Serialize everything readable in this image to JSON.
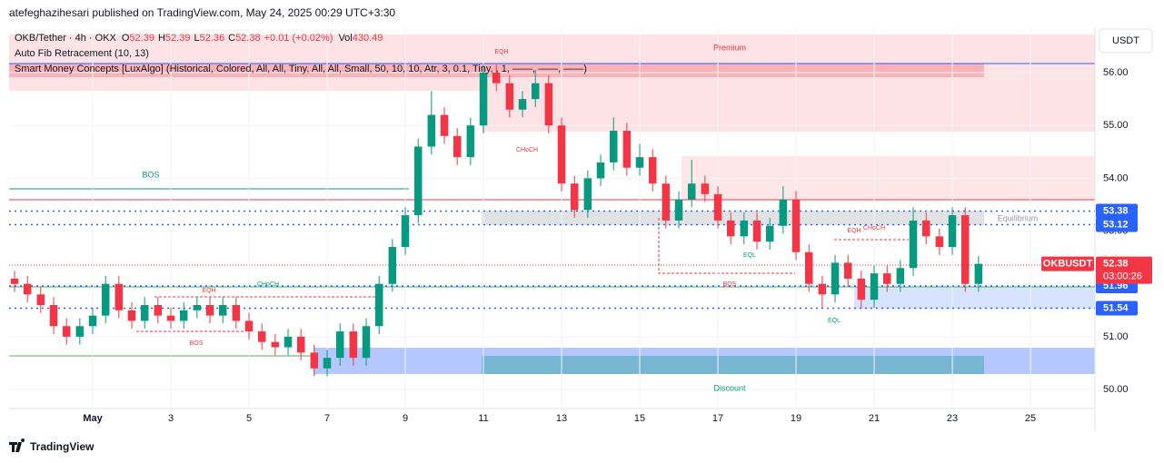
{
  "header": {
    "published": "atefeghazihesari published on TradingView.com, May 24, 2025 00:29 UTC+3:30"
  },
  "legend": {
    "symbol": "OKB/Tether · 4h · OKX",
    "ohlc": [
      {
        "label": "O",
        "value": 52.39
      },
      {
        "label": "H",
        "value": 52.39
      },
      {
        "label": "L",
        "value": 52.36
      },
      {
        "label": "C",
        "value": 52.38
      }
    ],
    "change": "+0.01 (+0.02%)",
    "volume_label": "Vol",
    "volume": 430.49,
    "indicators": [
      "Auto Fib Retracement (10, 13)",
      "Smart Money Concepts [LuxAlgo] (Historical, Colored, All, All, Tiny, All, All, Small, 50, 10, 10, Atr, 3, 0.1, Tiny, , 1, ——, ——, ——)"
    ]
  },
  "currency": "USDT",
  "footer": "TradingView",
  "annotations": [
    "EQH",
    "Premium",
    "CHoCH",
    "BOS",
    "Equilibrium",
    "EQH",
    "CHoCH",
    "EQL",
    "BOS",
    "EQH",
    "CHoCH",
    "BOS",
    "EQL",
    "Discount"
  ],
  "chart_data": {
    "type": "candlestick",
    "up_color": "#089981",
    "down_color": "#f23645",
    "x": [
      -1,
      -0.67,
      -0.33,
      0,
      0.33,
      0.67,
      1,
      1.33,
      1.67,
      2,
      2.33,
      2.67,
      3,
      3.33,
      3.67,
      4,
      4.33,
      4.67,
      5,
      5.33,
      5.67,
      6,
      6.33,
      6.67,
      7,
      7.33,
      7.67,
      8,
      8.33,
      8.67,
      9,
      9.33,
      9.67,
      10,
      10.33,
      10.67,
      11,
      11.33,
      11.67,
      12,
      12.33,
      12.67,
      13,
      13.33,
      13.67,
      14,
      14.33,
      14.67,
      15,
      15.33,
      15.67,
      16,
      16.33,
      16.67,
      17,
      17.33,
      17.67,
      18,
      18.33,
      18.67,
      19,
      19.33,
      19.67,
      20,
      20.33,
      20.67,
      21,
      21.33,
      21.67,
      22,
      22.33,
      22.67,
      23,
      23.33,
      23.67
    ],
    "open": [
      52.1,
      52.0,
      51.8,
      51.6,
      51.2,
      51.0,
      51.2,
      51.4,
      52.0,
      51.5,
      51.3,
      51.6,
      51.4,
      51.3,
      51.5,
      51.6,
      51.4,
      51.6,
      51.3,
      51.1,
      50.9,
      50.8,
      51.0,
      50.7,
      50.4,
      50.6,
      51.1,
      50.6,
      51.2,
      52.0,
      52.7,
      53.3,
      54.6,
      55.2,
      54.8,
      54.4,
      55.0,
      56.0,
      55.8,
      55.3,
      55.5,
      55.8,
      55.0,
      53.9,
      53.4,
      54.0,
      54.3,
      54.9,
      54.2,
      54.4,
      53.9,
      53.2,
      53.6,
      53.9,
      53.7,
      53.2,
      52.9,
      53.2,
      52.8,
      53.1,
      53.6,
      52.6,
      52.0,
      51.8,
      52.4,
      52.1,
      51.7,
      52.2,
      52.0,
      52.3,
      53.2,
      52.9,
      52.7,
      53.3,
      52.0
    ],
    "high": [
      52.25,
      52.15,
      51.95,
      51.75,
      51.35,
      51.35,
      51.55,
      52.15,
      52.15,
      51.65,
      51.75,
      51.75,
      51.55,
      51.65,
      51.75,
      51.75,
      51.75,
      51.75,
      51.45,
      51.25,
      51.05,
      51.15,
      51.15,
      50.85,
      50.75,
      51.25,
      51.25,
      51.35,
      52.15,
      52.85,
      53.45,
      54.75,
      55.65,
      55.35,
      54.95,
      55.15,
      56.15,
      56.15,
      55.95,
      55.65,
      56.05,
      55.95,
      55.15,
      54.05,
      54.15,
      54.45,
      55.15,
      55.05,
      54.65,
      54.55,
      54.05,
      53.75,
      54.35,
      54.05,
      53.85,
      53.35,
      53.35,
      53.35,
      53.25,
      53.85,
      53.75,
      52.75,
      52.15,
      52.55,
      52.55,
      52.25,
      52.35,
      52.35,
      52.45,
      53.45,
      53.35,
      53.05,
      53.45,
      53.45,
      52.53
    ],
    "low": [
      51.85,
      51.65,
      51.45,
      51.05,
      50.85,
      50.85,
      51.05,
      51.25,
      51.35,
      51.15,
      51.15,
      51.25,
      51.15,
      51.15,
      51.35,
      51.25,
      51.25,
      51.15,
      50.95,
      50.75,
      50.65,
      50.65,
      50.55,
      50.25,
      50.25,
      50.45,
      50.45,
      50.45,
      51.05,
      51.85,
      52.55,
      53.15,
      54.45,
      54.65,
      54.25,
      54.25,
      54.85,
      55.65,
      55.15,
      55.15,
      55.35,
      54.85,
      53.75,
      53.25,
      53.25,
      53.85,
      54.15,
      54.05,
      54.05,
      53.75,
      53.05,
      53.05,
      53.45,
      53.55,
      53.05,
      52.75,
      52.75,
      52.65,
      52.65,
      52.95,
      52.45,
      51.85,
      51.55,
      51.65,
      51.95,
      51.55,
      51.55,
      51.85,
      51.85,
      52.15,
      52.75,
      52.55,
      52.55,
      51.85,
      51.85
    ],
    "close": [
      52.0,
      51.8,
      51.6,
      51.2,
      51.0,
      51.2,
      51.4,
      52.0,
      51.5,
      51.3,
      51.6,
      51.4,
      51.3,
      51.5,
      51.6,
      51.4,
      51.6,
      51.3,
      51.1,
      50.9,
      50.8,
      51.0,
      50.7,
      50.4,
      50.6,
      51.1,
      50.6,
      51.2,
      52.0,
      52.7,
      53.3,
      54.6,
      55.2,
      54.8,
      54.4,
      55.0,
      56.0,
      55.8,
      55.3,
      55.5,
      55.8,
      55.0,
      53.9,
      53.4,
      54.0,
      54.3,
      54.9,
      54.2,
      54.4,
      53.9,
      53.2,
      53.6,
      53.9,
      53.7,
      53.2,
      52.9,
      53.2,
      52.8,
      53.1,
      53.6,
      52.6,
      52.0,
      51.8,
      52.4,
      52.1,
      51.7,
      52.2,
      52.0,
      52.3,
      53.2,
      52.9,
      52.7,
      53.3,
      52.0,
      52.38
    ],
    "xlim": [
      -1.14,
      26.65
    ],
    "xticks": [
      {
        "value": 1,
        "label": "May"
      },
      3,
      5,
      7,
      9,
      11,
      13,
      15,
      17,
      19,
      21,
      23,
      25
    ],
    "ylim": [
      49.64,
      56.86
    ],
    "yticks": [
      {
        "value": 50,
        "label": "50.00"
      },
      {
        "value": 51,
        "label": "51.00"
      },
      {
        "value": 52,
        "label": "52.00"
      },
      {
        "value": 53,
        "label": "53.00"
      },
      {
        "value": 54,
        "label": "54.00"
      },
      {
        "value": 55,
        "label": "55.00"
      },
      {
        "value": 56,
        "label": "56.00"
      }
    ],
    "grid": true,
    "price_labels": [
      {
        "value": 53.38,
        "color": "#2962ff"
      },
      {
        "value": 53.12,
        "color": "#2962ff"
      },
      {
        "value": 51.96,
        "color": "#2962ff"
      },
      {
        "value": 51.54,
        "color": "#2962ff"
      }
    ],
    "last_price": {
      "symbol": "OKBUSDT",
      "value": 52.38,
      "countdown": "03:00:26",
      "color": "#f23645"
    }
  }
}
